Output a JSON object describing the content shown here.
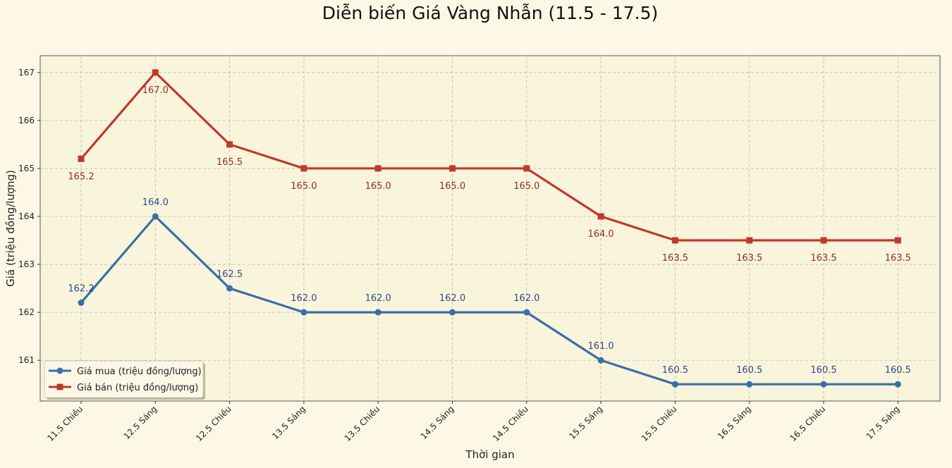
{
  "chart_data": {
    "type": "line",
    "title": "Diễn biến Giá Vàng Nhẫn (11.5 - 17.5)",
    "xlabel": "Thời gian",
    "ylabel": "Giá (triệu đồng/lượng)",
    "ylim": [
      160.15,
      167.35
    ],
    "yticks": [
      161,
      162,
      163,
      164,
      165,
      166,
      167
    ],
    "grid": true,
    "legend_position": "bottom-left",
    "categories": [
      "11.5 Chiều",
      "12.5 Sáng",
      "12.5 Chiều",
      "13.5 Sáng",
      "13.5 Chiều",
      "14.5 Sáng",
      "14.5 Chiều",
      "15.5 Sáng",
      "15.5 Chiều",
      "16.5 Sáng",
      "16.5 Chiều",
      "17.5 Sáng"
    ],
    "series": [
      {
        "name": "Giá mua (triệu đồng/lượng)",
        "marker": "circle",
        "color": "#3a6ea8",
        "label_color": "#2b4a8a",
        "values": [
          162.2,
          164.0,
          162.5,
          162.0,
          162.0,
          162.0,
          162.0,
          161.0,
          160.5,
          160.5,
          160.5,
          160.5
        ],
        "labels": [
          "162.2",
          "164.0",
          "162.5",
          "162.0",
          "162.0",
          "162.0",
          "162.0",
          "161.0",
          "160.5",
          "160.5",
          "160.5",
          "160.5"
        ],
        "label_side": "above"
      },
      {
        "name": "Giá bán (triệu đồng/lượng)",
        "marker": "square",
        "color": "#c0392b",
        "label_color": "#8f2f22",
        "values": [
          165.2,
          167.0,
          165.5,
          165.0,
          165.0,
          165.0,
          165.0,
          164.0,
          163.5,
          163.5,
          163.5,
          163.5
        ],
        "labels": [
          "165.2",
          "167.0",
          "165.5",
          "165.0",
          "165.0",
          "165.0",
          "165.0",
          "164.0",
          "163.5",
          "163.5",
          "163.5",
          "163.5"
        ],
        "label_side": "below"
      }
    ]
  }
}
